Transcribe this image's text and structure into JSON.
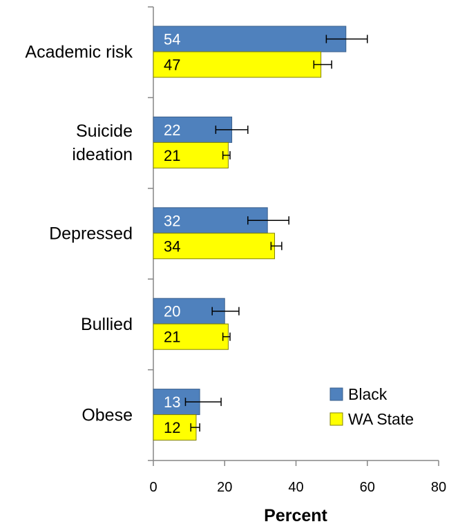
{
  "chart_data": {
    "type": "bar",
    "orientation": "horizontal",
    "categories": [
      "Academic risk",
      "Suicide ideation",
      "Depressed",
      "Bullied",
      "Obese"
    ],
    "category_label_lines": [
      [
        "Academic risk"
      ],
      [
        "Suicide",
        "ideation"
      ],
      [
        "Depressed"
      ],
      [
        "Bullied"
      ],
      [
        "Obese"
      ]
    ],
    "series": [
      {
        "name": "Black",
        "color": "#4F81BD",
        "label_color": "#ffffff",
        "values": [
          54,
          22,
          32,
          20,
          13
        ],
        "value_labels": [
          "54",
          "22",
          "32",
          "20",
          "13"
        ],
        "error_low": [
          48.5,
          17.5,
          26.5,
          16.5,
          9
        ],
        "error_high": [
          60,
          26.5,
          38,
          24,
          19
        ]
      },
      {
        "name": "WA State",
        "color": "#FFFF00",
        "label_color": "#000000",
        "values": [
          47,
          21,
          34,
          21,
          12
        ],
        "value_labels": [
          "47",
          "21",
          "34",
          "21",
          "12"
        ],
        "error_low": [
          45,
          19.5,
          33,
          19.5,
          10.5
        ],
        "error_high": [
          50,
          21.5,
          36,
          21.5,
          13
        ]
      }
    ],
    "xlabel": "Percent",
    "xlim": [
      0,
      80
    ],
    "xticks": [
      "0",
      "20",
      "40",
      "60",
      "80"
    ],
    "grid": false,
    "legend_position": "bottom-right"
  }
}
